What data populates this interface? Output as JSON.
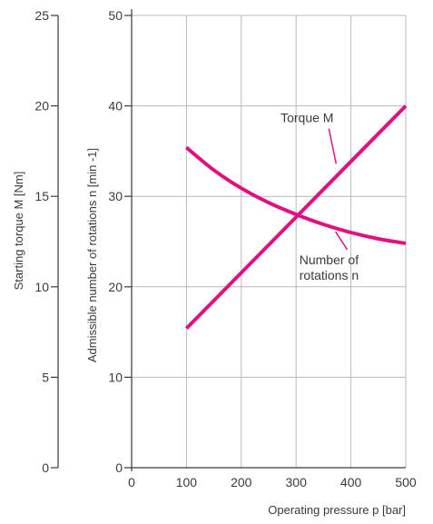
{
  "chart_data": {
    "type": "line",
    "xlabel": "Operating pressure p [bar]",
    "x_ticks": [
      0,
      100,
      200,
      300,
      400,
      500
    ],
    "xlim": [
      0,
      500
    ],
    "y_left": {
      "label": "Starting torque M [Nm]",
      "ticks": [
        0,
        5,
        10,
        15,
        20,
        25
      ],
      "ylim": [
        0,
        25
      ]
    },
    "y_right": {
      "label": "Admissible number of rotations n [min -1]",
      "ticks": [
        0,
        10,
        20,
        30,
        40,
        50
      ],
      "ylim": [
        0,
        50
      ]
    },
    "grid": true,
    "colors": {
      "series": "#e0117f",
      "grid": "#b8b8b8",
      "axis": "#3a3a3a"
    },
    "series": [
      {
        "name": "Torque M",
        "axis": "y_left",
        "x": [
          100,
          500
        ],
        "y": [
          7.7,
          20.0
        ]
      },
      {
        "name": "Number of rotations n",
        "axis": "y_right",
        "x": [
          100,
          150,
          200,
          250,
          300,
          350,
          400,
          450,
          500
        ],
        "y": [
          35.4,
          32.9,
          30.9,
          29.3,
          28.0,
          26.9,
          26.0,
          25.3,
          24.8
        ]
      }
    ],
    "annotations": [
      {
        "series": 0,
        "lines": [
          "Torque M"
        ],
        "x": 320,
        "y": 38.2,
        "anchor_x": 373,
        "anchor_y": 33.6
      },
      {
        "series": 1,
        "lines": [
          "Number of",
          "rotations n"
        ],
        "x": 360,
        "y": 22.5,
        "anchor_x": 372,
        "anchor_y": 26.1
      }
    ]
  }
}
